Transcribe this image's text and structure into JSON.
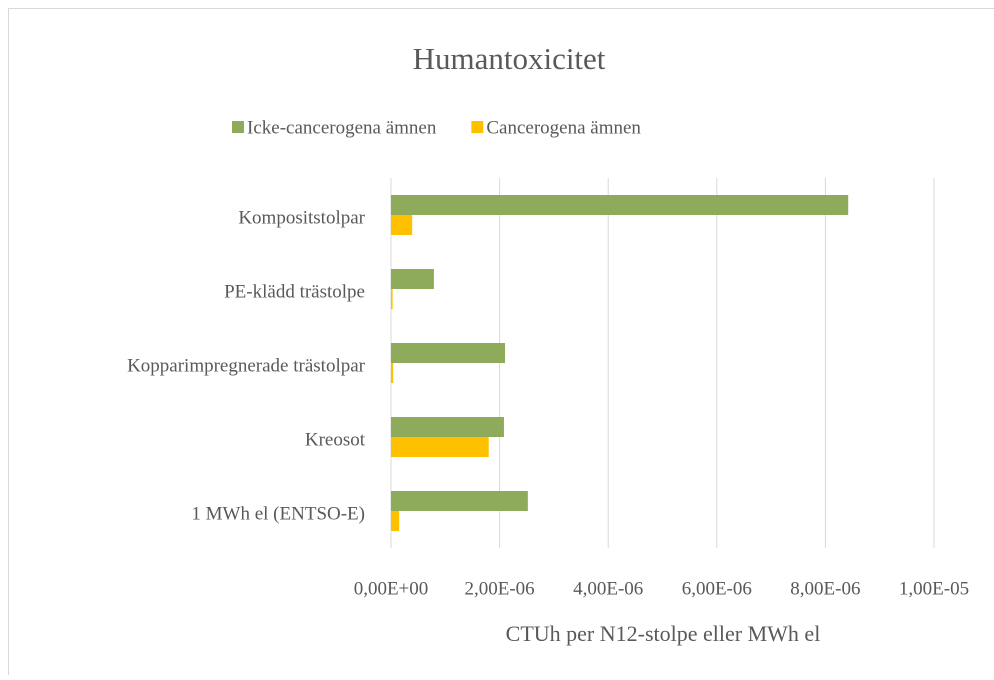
{
  "chart_data": {
    "type": "hbar",
    "title": "Humantoxicitet",
    "xlabel": "CTUh per N12-stolpe eller MWh el",
    "categories": [
      "Kompositstolpar",
      "PE-klädd trästolpe",
      "Kopparimpregnerade trästolpar",
      "Kreosot",
      "1 MWh el (ENTSO-E)"
    ],
    "series": [
      {
        "name": "Icke-cancerogena ämnen",
        "color": "#8eaa5b",
        "values": [
          8.42e-06,
          7.9e-07,
          2.1e-06,
          2.08e-06,
          2.52e-06
        ]
      },
      {
        "name": "Cancerogena ämnen",
        "color": "#ffc000",
        "values": [
          3.9e-07,
          3e-08,
          4e-08,
          1.8e-06,
          1.5e-07
        ]
      }
    ],
    "xlim": [
      0,
      1e-05
    ],
    "xticks": [
      {
        "value": 0,
        "label": "0,00E+00"
      },
      {
        "value": 2e-06,
        "label": "2,00E-06"
      },
      {
        "value": 4e-06,
        "label": "4,00E-06"
      },
      {
        "value": 6e-06,
        "label": "6,00E-06"
      },
      {
        "value": 8e-06,
        "label": "8,00E-06"
      },
      {
        "value": 1e-05,
        "label": "1,00E-05"
      }
    ],
    "grid": true,
    "legend": "top"
  }
}
